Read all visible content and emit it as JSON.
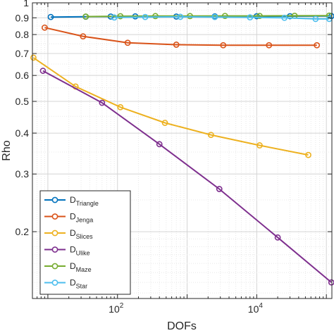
{
  "chart_data": {
    "type": "line",
    "xlabel": "DOFs",
    "ylabel": "Rho",
    "xscale": "log",
    "yscale": "log",
    "xlim": [
      6,
      120000
    ],
    "ylim": [
      0.125,
      1.0
    ],
    "grid": true,
    "minor_grid": true,
    "legend_position": "bottom-left",
    "x_ticks": [
      {
        "value": 100,
        "base": "10",
        "exp": "2"
      },
      {
        "value": 10000,
        "base": "10",
        "exp": "4"
      }
    ],
    "y_ticks": [
      {
        "value": 0.2,
        "label": "0.2"
      },
      {
        "value": 0.3,
        "label": "0.3"
      },
      {
        "value": 0.4,
        "label": "0.4"
      },
      {
        "value": 0.5,
        "label": "0.5"
      },
      {
        "value": 0.6,
        "label": "0.6"
      },
      {
        "value": 0.7,
        "label": "0.7"
      },
      {
        "value": 0.8,
        "label": "0.8"
      },
      {
        "value": 0.9,
        "label": "0.9"
      },
      {
        "value": 1.0,
        "label": "1"
      }
    ],
    "series": [
      {
        "name": "D",
        "subscript": "Triangle",
        "color": "#0072BD",
        "points": [
          [
            11,
            0.905
          ],
          [
            35,
            0.907
          ],
          [
            80,
            0.908
          ],
          [
            180,
            0.909
          ],
          [
            700,
            0.908
          ],
          [
            2500,
            0.909
          ],
          [
            10000,
            0.91
          ],
          [
            30000,
            0.91
          ],
          [
            118000,
            0.911
          ]
        ]
      },
      {
        "name": "D",
        "subscript": "Jenga",
        "color": "#D95319",
        "points": [
          [
            9,
            0.84
          ],
          [
            32,
            0.79
          ],
          [
            140,
            0.755
          ],
          [
            700,
            0.745
          ],
          [
            3300,
            0.742
          ],
          [
            15000,
            0.742
          ],
          [
            73000,
            0.742
          ]
        ]
      },
      {
        "name": "D",
        "subscript": "Slices",
        "color": "#EDB120",
        "points": [
          [
            6.2,
            0.68
          ],
          [
            25,
            0.555
          ],
          [
            110,
            0.48
          ],
          [
            480,
            0.43
          ],
          [
            2200,
            0.395
          ],
          [
            11000,
            0.367
          ],
          [
            55000,
            0.343
          ]
        ]
      },
      {
        "name": "D",
        "subscript": "Ulike",
        "color": "#7E2F8E",
        "points": [
          [
            8.5,
            0.62
          ],
          [
            60,
            0.495
          ],
          [
            400,
            0.37
          ],
          [
            2900,
            0.27
          ],
          [
            20000,
            0.192
          ],
          [
            118000,
            0.14
          ]
        ]
      },
      {
        "name": "D",
        "subscript": "Maze",
        "color": "#77AC30",
        "points": [
          [
            35,
            0.908
          ],
          [
            110,
            0.91
          ],
          [
            350,
            0.911
          ],
          [
            1100,
            0.911
          ],
          [
            3500,
            0.912
          ],
          [
            11000,
            0.912
          ],
          [
            35000,
            0.913
          ],
          [
            110000,
            0.914
          ]
        ]
      },
      {
        "name": "D",
        "subscript": "Star",
        "color": "#4DBEEE",
        "points": [
          [
            90,
            0.902
          ],
          [
            250,
            0.905
          ],
          [
            800,
            0.906
          ],
          [
            2500,
            0.905
          ],
          [
            8000,
            0.903
          ],
          [
            25000,
            0.9
          ],
          [
            70000,
            0.893
          ],
          [
            110000,
            0.893
          ]
        ]
      }
    ]
  }
}
